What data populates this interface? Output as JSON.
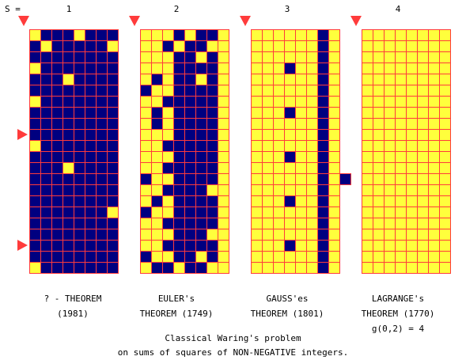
{
  "s_label": "S =",
  "colors": {
    "background": "#ffffff",
    "grid_line": "#ff3b3b",
    "filled": "#000080",
    "empty": "#ffff3c",
    "marker": "#ff3b3b"
  },
  "markers": {
    "count": 3,
    "shape": "triangle-right"
  },
  "panels": [
    {
      "s": "1",
      "caption": [
        "? - THEOREM",
        "(1981)"
      ],
      "rows": [
        "01110111",
        "10111110",
        "11111111",
        "01111111",
        "11101111",
        "11111111",
        "01111111",
        "11111111",
        "11111111",
        "11111111",
        "01111111",
        "11111111",
        "11101111",
        "11111111",
        "11111111",
        "11111111",
        "11111110",
        "11111111",
        "11111111",
        "11111111",
        "11111111",
        "01111111"
      ],
      "extra": []
    },
    {
      "s": "2",
      "caption": [
        "EULER's",
        "THEOREM (1749)"
      ],
      "rows": [
        "00010110",
        "00101100",
        "00011010",
        "00011110",
        "01011010",
        "10011110",
        "00111110",
        "01011110",
        "01011110",
        "00011110",
        "00111110",
        "00011110",
        "00111110",
        "10011110",
        "00111100",
        "01011110",
        "10011110",
        "00111110",
        "00011100",
        "00111110",
        "10011010",
        "01101100"
      ],
      "extra": []
    },
    {
      "s": "3",
      "caption": [
        "GAUSS'es",
        "THEOREM (1801)"
      ],
      "rows": [
        "00000010",
        "00000010",
        "00000010",
        "00010010",
        "00000010",
        "00000010",
        "00000010",
        "00010010",
        "00000010",
        "00000010",
        "00000010",
        "00010010",
        "00000010",
        "00000010",
        "00000010",
        "00010010",
        "00000010",
        "00000010",
        "00000010",
        "00010010",
        "00000010",
        "00000010"
      ],
      "extra": [
        13
      ]
    },
    {
      "s": "4",
      "caption": [
        "LAGRANGE's",
        "THEOREM (1770)",
        "g(0,2) = 4"
      ],
      "rows": [
        "00000000",
        "00000000",
        "00000000",
        "00000000",
        "00000000",
        "00000000",
        "00000000",
        "00000000",
        "00000000",
        "00000000",
        "00000000",
        "00000000",
        "00000000",
        "00000000",
        "00000000",
        "00000000",
        "00000000",
        "00000000",
        "00000000",
        "00000000",
        "00000000",
        "00000000"
      ],
      "extra": []
    }
  ],
  "footer": [
    "Classical Waring's problem",
    "on sums of squares of NON-NEGATIVE integers."
  ]
}
